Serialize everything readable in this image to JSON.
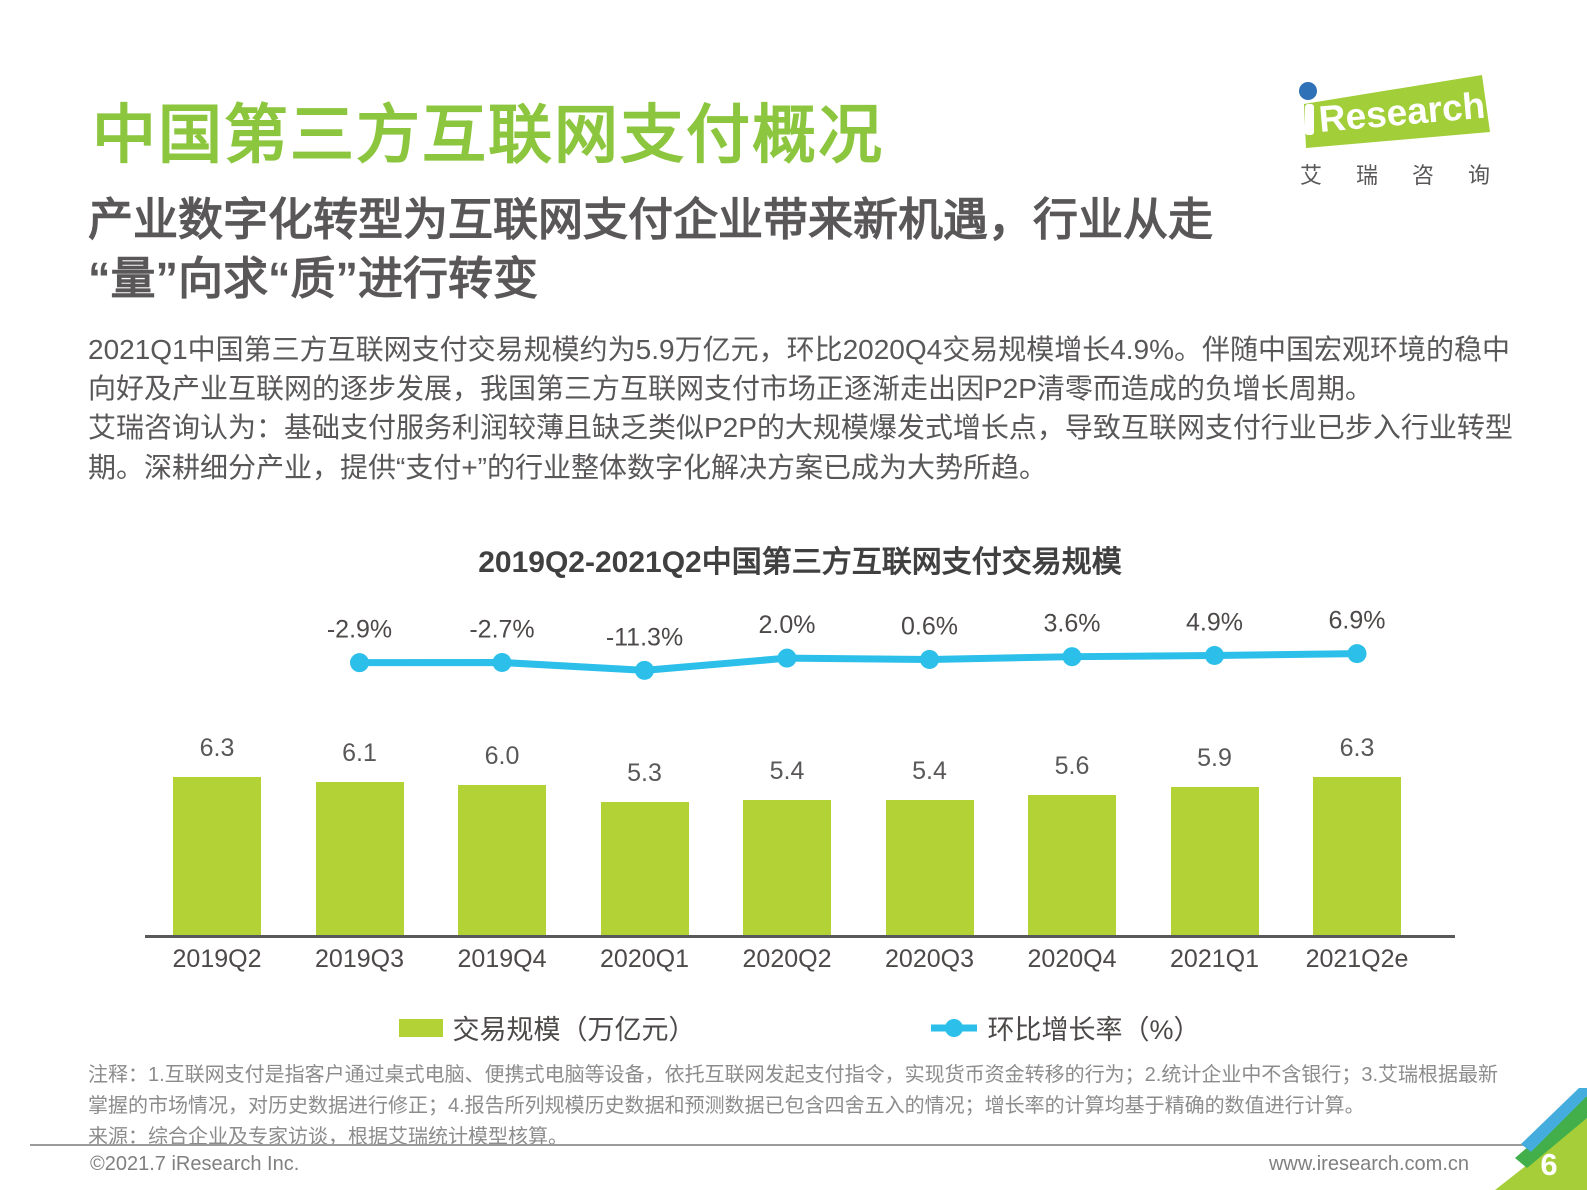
{
  "page": {
    "title": "中国第三方互联网支付概况",
    "subtitle_line1": "产业数字化转型为互联网支付企业带来新机遇，行业从走",
    "subtitle_line2": "“量”向求“质”进行转变"
  },
  "logo": {
    "research": "Research",
    "chinese": "艾瑞咨询"
  },
  "intro": {
    "p1": "2021Q1中国第三方互联网支付交易规模约为5.9万亿元，环比2020Q4交易规模增长4.9%。伴随中国宏观环境的稳中向好及产业互联网的逐步发展，我国第三方互联网支付市场正逐渐走出因P2P清零而造成的负增长周期。",
    "p2": "艾瑞咨询认为：基础支付服务利润较薄且缺乏类似P2P的大规模爆发式增长点，导致互联网支付行业已步入行业转型期。深耕细分产业，提供“支付+”的行业整体数字化解决方案已成为大势所趋。"
  },
  "chart_data": {
    "type": "bar+line",
    "title": "2019Q2-2021Q2中国第三方互联网支付交易规模",
    "categories": [
      "2019Q2",
      "2019Q3",
      "2019Q4",
      "2020Q1",
      "2020Q2",
      "2020Q3",
      "2020Q4",
      "2021Q1",
      "2021Q2e"
    ],
    "series": [
      {
        "name": "交易规模（万亿元）",
        "type": "bar",
        "unit": "万亿元",
        "color": "#B2D235",
        "values": [
          6.3,
          6.1,
          6.0,
          5.3,
          5.4,
          5.4,
          5.6,
          5.9,
          6.3
        ],
        "labels": [
          "6.3",
          "6.1",
          "6.0",
          "5.3",
          "5.4",
          "5.4",
          "5.6",
          "5.9",
          "6.3"
        ]
      },
      {
        "name": "环比增长率（%）",
        "type": "line",
        "unit": "%",
        "color": "#2BBFE9",
        "values": [
          null,
          -2.9,
          -2.7,
          -11.3,
          2.0,
          0.6,
          3.6,
          4.9,
          6.9
        ],
        "labels": [
          "",
          "-2.9%",
          "-2.7%",
          "-11.3%",
          "2.0%",
          "0.6%",
          "3.6%",
          "4.9%",
          "6.9%"
        ]
      }
    ],
    "legend_position": "bottom",
    "grid": false,
    "y_axis": "hidden",
    "ylim_bar": [
      0,
      7
    ]
  },
  "notes": {
    "note": "注释：1.互联网支付是指客户通过桌式电脑、便携式电脑等设备，依托互联网发起支付指令，实现货币资金转移的行为；2.统计企业中不含银行；3.艾瑞根据最新掌握的市场情况，对历史数据进行修正；4.报告所列规模历史数据和预测数据已包含四舍五入的情况；增长率的计算均基于精确的数值进行计算。",
    "source": "来源：综合企业及专家访谈，根据艾瑞统计模型核算。"
  },
  "footer": {
    "copyright": "©2021.7 iResearch Inc.",
    "url": "www.iresearch.com.cn",
    "page_number": "6"
  },
  "colors": {
    "title_green": "#8CC63F",
    "bar_green": "#B2D235",
    "line_blue": "#2BBFE9",
    "logo_green": "#A2CE39",
    "logo_dot_blue": "#2E71B6",
    "corner_blue": "#45ACDE",
    "corner_green": "#43AF4A",
    "corner_light_green": "#A6CE39",
    "text_dark": "#595757",
    "text_gray": "#8C8C8C"
  }
}
